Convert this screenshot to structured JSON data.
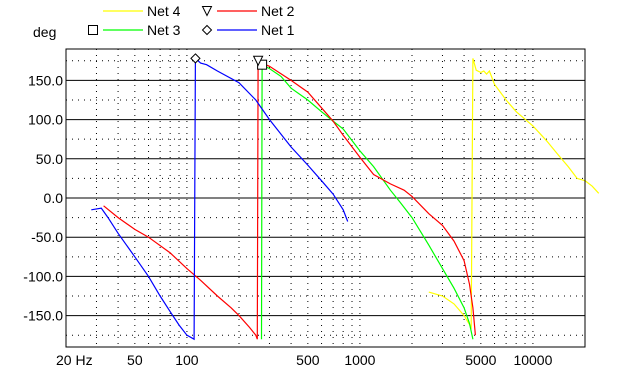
{
  "chart_data": {
    "type": "line",
    "title": "",
    "xlabel": "",
    "ylabel": "deg",
    "x_scale": "log",
    "xlim": [
      20,
      20000
    ],
    "ylim": [
      -190,
      190
    ],
    "x_ticks": [
      {
        "value": 20,
        "label": "20 Hz"
      },
      {
        "value": 50,
        "label": "50"
      },
      {
        "value": 100,
        "label": "100"
      },
      {
        "value": 500,
        "label": "500"
      },
      {
        "value": 1000,
        "label": "1000"
      },
      {
        "value": 5000,
        "label": "5000"
      },
      {
        "value": 10000,
        "label": "10000"
      }
    ],
    "y_ticks": [
      {
        "value": 150,
        "label": "150.0"
      },
      {
        "value": 100,
        "label": "100.0"
      },
      {
        "value": 50,
        "label": "50.0"
      },
      {
        "value": 0,
        "label": "0.0"
      },
      {
        "value": -50,
        "label": "-50.0"
      },
      {
        "value": -100,
        "label": "-100.0"
      },
      {
        "value": -150,
        "label": "-150.0"
      }
    ],
    "grid": true,
    "legend_position": "top",
    "series": [
      {
        "name": "Net 4",
        "color": "#ffff00",
        "marker": "none",
        "points": [
          [
            2500,
            -120
          ],
          [
            3000,
            -125
          ],
          [
            3500,
            -135
          ],
          [
            4000,
            -150
          ],
          [
            4400,
            -165
          ],
          [
            4500,
            178
          ],
          [
            4700,
            163
          ],
          [
            5000,
            160
          ],
          [
            5200,
            162
          ],
          [
            5400,
            158
          ],
          [
            5600,
            162
          ],
          [
            6000,
            145
          ],
          [
            7000,
            125
          ],
          [
            8000,
            110
          ],
          [
            10000,
            92
          ],
          [
            12000,
            73
          ],
          [
            14000,
            55
          ],
          [
            16000,
            40
          ],
          [
            18000,
            25
          ],
          [
            20000,
            22
          ],
          [
            22000,
            15
          ],
          [
            24000,
            6
          ]
        ]
      },
      {
        "name": "Net 3",
        "color": "#00ff00",
        "marker": "square",
        "points": [
          [
            270,
            -180
          ],
          [
            272,
            170
          ],
          [
            300,
            165
          ],
          [
            350,
            155
          ],
          [
            400,
            140
          ],
          [
            500,
            125
          ],
          [
            600,
            110
          ],
          [
            700,
            98
          ],
          [
            800,
            88
          ],
          [
            1000,
            60
          ],
          [
            1200,
            40
          ],
          [
            1500,
            10
          ],
          [
            1700,
            -5
          ],
          [
            2000,
            -25
          ],
          [
            2500,
            -60
          ],
          [
            3000,
            -90
          ],
          [
            3500,
            -115
          ],
          [
            4000,
            -140
          ],
          [
            4300,
            -160
          ],
          [
            4500,
            -180
          ]
        ]
      },
      {
        "name": "Net 2",
        "color": "#ff0000",
        "marker": "triangle-down",
        "points": [
          [
            33,
            -10
          ],
          [
            40,
            -25
          ],
          [
            50,
            -40
          ],
          [
            60,
            -50
          ],
          [
            80,
            -70
          ],
          [
            100,
            -90
          ],
          [
            120,
            -105
          ],
          [
            150,
            -125
          ],
          [
            180,
            -140
          ],
          [
            200,
            -150
          ],
          [
            230,
            -165
          ],
          [
            250,
            -175
          ],
          [
            255,
            -180
          ],
          [
            258,
            175
          ],
          [
            270,
            172
          ],
          [
            300,
            168
          ],
          [
            400,
            150
          ],
          [
            500,
            135
          ],
          [
            600,
            115
          ],
          [
            700,
            98
          ],
          [
            800,
            80
          ],
          [
            1000,
            52
          ],
          [
            1200,
            30
          ],
          [
            1500,
            18
          ],
          [
            1800,
            10
          ],
          [
            2000,
            2
          ],
          [
            2500,
            -20
          ],
          [
            3000,
            -35
          ],
          [
            3500,
            -55
          ],
          [
            4000,
            -80
          ],
          [
            4300,
            -110
          ],
          [
            4500,
            -140
          ],
          [
            4650,
            -175
          ]
        ]
      },
      {
        "name": "Net 1",
        "color": "#0000ff",
        "marker": "diamond",
        "points": [
          [
            28,
            -15
          ],
          [
            32,
            -13
          ],
          [
            35,
            -25
          ],
          [
            40,
            -45
          ],
          [
            50,
            -75
          ],
          [
            60,
            -100
          ],
          [
            70,
            -125
          ],
          [
            80,
            -145
          ],
          [
            90,
            -162
          ],
          [
            100,
            -175
          ],
          [
            110,
            -180
          ],
          [
            112,
            178
          ],
          [
            120,
            172
          ],
          [
            130,
            170
          ],
          [
            150,
            162
          ],
          [
            200,
            147
          ],
          [
            250,
            125
          ],
          [
            300,
            100
          ],
          [
            400,
            65
          ],
          [
            500,
            42
          ],
          [
            600,
            22
          ],
          [
            700,
            5
          ],
          [
            800,
            -15
          ],
          [
            850,
            -30
          ]
        ]
      }
    ]
  }
}
